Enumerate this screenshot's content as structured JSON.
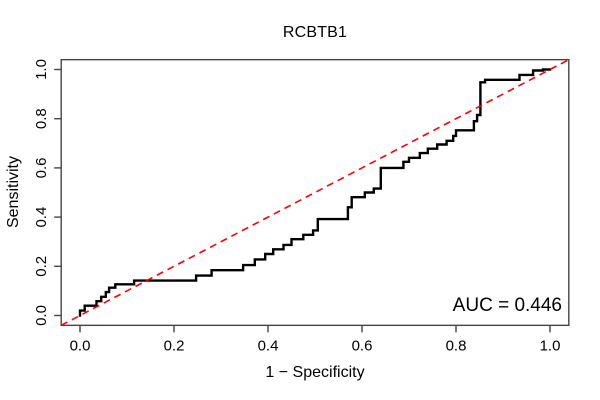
{
  "figure": {
    "title": "RCBTB1",
    "xlabel": "1 − Specificity",
    "ylabel": "Sensitivity",
    "auc_label": "AUC = 0.446"
  },
  "chart_data": {
    "type": "line",
    "subtype": "roc-step-curve",
    "title": "RCBTB1",
    "xlabel": "1 − Specificity",
    "ylabel": "Sensitivity",
    "xlim": [
      0,
      1
    ],
    "ylim": [
      0,
      1
    ],
    "x_ticks": [
      "0.0",
      "0.2",
      "0.4",
      "0.6",
      "0.8",
      "1.0"
    ],
    "y_ticks": [
      "0.0",
      "0.2",
      "0.4",
      "0.6",
      "0.8",
      "1.0"
    ],
    "grid": false,
    "auc": 0.446,
    "annotations": [
      {
        "text": "AUC = 0.446",
        "position": "bottom-right"
      }
    ],
    "colors": {
      "curve": "#000000",
      "chance_line": "#FF0000",
      "axis": "#444444"
    },
    "series": [
      {
        "name": "ROC curve",
        "type": "step",
        "color": "#000000",
        "points": [
          [
            0,
            0
          ],
          [
            0,
            0.02
          ],
          [
            0.01,
            0.02
          ],
          [
            0.01,
            0.04
          ],
          [
            0.035,
            0.04
          ],
          [
            0.035,
            0.058
          ],
          [
            0.045,
            0.058
          ],
          [
            0.045,
            0.076
          ],
          [
            0.055,
            0.076
          ],
          [
            0.055,
            0.095
          ],
          [
            0.062,
            0.095
          ],
          [
            0.062,
            0.113
          ],
          [
            0.075,
            0.113
          ],
          [
            0.075,
            0.127
          ],
          [
            0.115,
            0.127
          ],
          [
            0.115,
            0.142
          ],
          [
            0.247,
            0.142
          ],
          [
            0.247,
            0.162
          ],
          [
            0.28,
            0.162
          ],
          [
            0.28,
            0.184
          ],
          [
            0.347,
            0.184
          ],
          [
            0.347,
            0.205
          ],
          [
            0.372,
            0.205
          ],
          [
            0.372,
            0.228
          ],
          [
            0.394,
            0.228
          ],
          [
            0.394,
            0.25
          ],
          [
            0.411,
            0.25
          ],
          [
            0.411,
            0.269
          ],
          [
            0.433,
            0.269
          ],
          [
            0.433,
            0.287
          ],
          [
            0.45,
            0.287
          ],
          [
            0.45,
            0.31
          ],
          [
            0.475,
            0.31
          ],
          [
            0.475,
            0.328
          ],
          [
            0.496,
            0.328
          ],
          [
            0.496,
            0.346
          ],
          [
            0.506,
            0.346
          ],
          [
            0.506,
            0.392
          ],
          [
            0.57,
            0.392
          ],
          [
            0.57,
            0.44
          ],
          [
            0.578,
            0.44
          ],
          [
            0.578,
            0.481
          ],
          [
            0.606,
            0.481
          ],
          [
            0.606,
            0.5
          ],
          [
            0.625,
            0.5
          ],
          [
            0.625,
            0.516
          ],
          [
            0.64,
            0.516
          ],
          [
            0.64,
            0.6
          ],
          [
            0.688,
            0.6
          ],
          [
            0.688,
            0.625
          ],
          [
            0.7,
            0.625
          ],
          [
            0.7,
            0.641
          ],
          [
            0.723,
            0.641
          ],
          [
            0.723,
            0.66
          ],
          [
            0.74,
            0.66
          ],
          [
            0.74,
            0.678
          ],
          [
            0.76,
            0.678
          ],
          [
            0.76,
            0.695
          ],
          [
            0.78,
            0.695
          ],
          [
            0.78,
            0.71
          ],
          [
            0.794,
            0.71
          ],
          [
            0.794,
            0.73
          ],
          [
            0.8,
            0.73
          ],
          [
            0.8,
            0.753
          ],
          [
            0.838,
            0.753
          ],
          [
            0.838,
            0.79
          ],
          [
            0.845,
            0.79
          ],
          [
            0.845,
            0.815
          ],
          [
            0.852,
            0.815
          ],
          [
            0.852,
            0.948
          ],
          [
            0.862,
            0.948
          ],
          [
            0.862,
            0.958
          ],
          [
            0.935,
            0.958
          ],
          [
            0.935,
            0.978
          ],
          [
            0.964,
            0.978
          ],
          [
            0.964,
            0.996
          ],
          [
            0.985,
            0.996
          ],
          [
            0.985,
            1
          ],
          [
            1,
            1
          ]
        ]
      },
      {
        "name": "Chance line",
        "type": "line",
        "style": "dashed",
        "color": "#FF0000",
        "points": [
          [
            0,
            0
          ],
          [
            1,
            1
          ]
        ]
      }
    ]
  }
}
